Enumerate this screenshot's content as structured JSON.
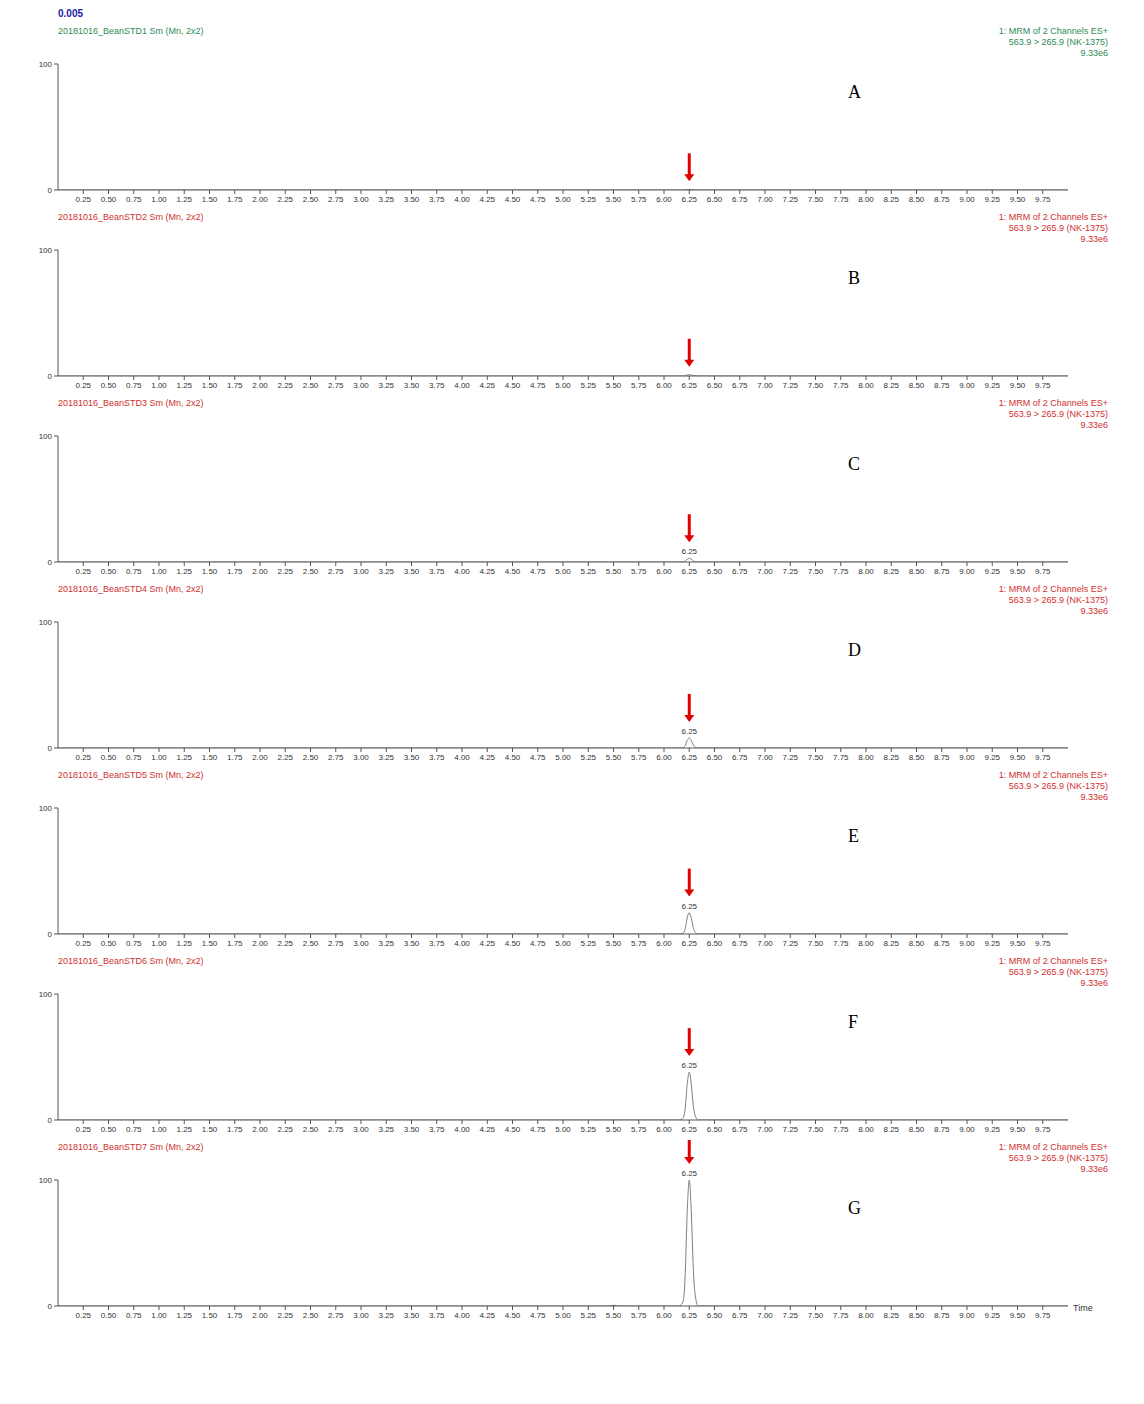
{
  "label": "0.005",
  "chart_data": [
    {
      "type": "line",
      "title": "20181016_BeanSTD1 Sm (Mn, 2x2)",
      "subtitle": [
        "1: MRM of 2 Channels ES+",
        "563.9 > 265.9 (NK-1375)",
        "9.33e6"
      ],
      "annotations": [
        {
          "text": "A"
        }
      ],
      "arrows": [
        6.25
      ],
      "color": "#808080",
      "x": [
        0,
        5.45,
        5.5,
        5.55,
        6.15,
        6.19,
        6.21,
        6.23,
        6.25,
        6.27,
        6.29,
        6.31,
        6.34,
        10
      ],
      "values": [
        0,
        0,
        0,
        0,
        0,
        0,
        0.1,
        0.4,
        0.5,
        0.4,
        0.2,
        0,
        0,
        0
      ],
      "xlim": [
        0,
        10
      ],
      "ylim": [
        0,
        100
      ],
      "yticks": [
        0,
        100
      ],
      "xticks": [
        0.25,
        {
          "value": 0.5,
          "label": "0.50"
        },
        0.75,
        {
          "value": 1,
          "label": "1.00"
        },
        1.25,
        {
          "value": 1.5,
          "label": "1.50"
        },
        1.75,
        {
          "value": 2,
          "label": "2.00"
        },
        2.25,
        {
          "value": 2.5,
          "label": "2.50"
        },
        2.75,
        {
          "value": 3,
          "label": "3.00"
        },
        3.25,
        {
          "value": 3.5,
          "label": "3.50"
        },
        3.75,
        {
          "value": 4,
          "label": "4.00"
        },
        4.25,
        {
          "value": 4.5,
          "label": "4.50"
        },
        4.75,
        {
          "value": 5,
          "label": "5.00"
        },
        5.25,
        {
          "value": 5.5,
          "label": "5.50"
        },
        5.75,
        {
          "value": 6,
          "label": "6.00"
        },
        6.25,
        {
          "value": 6.5,
          "label": "6.50"
        },
        6.75,
        {
          "value": 7,
          "label": "7.00"
        },
        7.25,
        {
          "value": 7.5,
          "label": "7.50"
        },
        7.75,
        {
          "value": 8,
          "label": "8.00"
        },
        8.25,
        {
          "value": 8.5,
          "label": "8.50"
        },
        8.75,
        {
          "value": 9,
          "label": "9.00"
        },
        9.25,
        {
          "value": 9.5,
          "label": "9.50"
        },
        9.75
      ]
    },
    {
      "type": "line",
      "title": "20181016_BeanSTD2 Sm (Mn, 2x2)",
      "subtitle": [
        "1: MRM of 2 Channels ES+",
        "563.9 > 265.9 (NK-1375)",
        "9.33e6"
      ],
      "annotations": [
        {
          "text": "B"
        }
      ],
      "arrows": [
        6.25
      ],
      "color": "#808080",
      "x": [
        0,
        5.45,
        5.5,
        5.55,
        6.15,
        6.19,
        6.21,
        6.23,
        6.25,
        6.27,
        6.29,
        6.31,
        6.34,
        10
      ],
      "values": [
        0,
        0,
        0,
        0,
        0,
        0,
        0.3,
        0.8,
        1,
        0.8,
        0.3,
        0.1,
        0,
        0
      ],
      "xlim": [
        0,
        10
      ],
      "ylim": [
        0,
        100
      ],
      "yticks": [
        0,
        100
      ],
      "xticks": [
        0.25,
        {
          "value": 0.5,
          "label": "0.50"
        },
        0.75,
        {
          "value": 1,
          "label": "1.00"
        },
        1.25,
        {
          "value": 1.5,
          "label": "1.50"
        },
        1.75,
        {
          "value": 2,
          "label": "2.00"
        },
        2.25,
        {
          "value": 2.5,
          "label": "2.50"
        },
        2.75,
        {
          "value": 3,
          "label": "3.00"
        },
        3.25,
        {
          "value": 3.5,
          "label": "3.50"
        },
        3.75,
        {
          "value": 4,
          "label": "4.00"
        },
        4.25,
        {
          "value": 4.5,
          "label": "4.50"
        },
        4.75,
        {
          "value": 5,
          "label": "5.00"
        },
        5.25,
        {
          "value": 5.5,
          "label": "5.50"
        },
        5.75,
        {
          "value": 6,
          "label": "6.00"
        },
        6.25,
        {
          "value": 6.5,
          "label": "6.50"
        },
        6.75,
        {
          "value": 7,
          "label": "7.00"
        },
        7.25,
        {
          "value": 7.5,
          "label": "7.50"
        },
        7.75,
        {
          "value": 8,
          "label": "8.00"
        },
        8.25,
        {
          "value": 8.5,
          "label": "8.50"
        },
        8.75,
        {
          "value": 9,
          "label": "9.00"
        },
        9.25,
        {
          "value": 9.5,
          "label": "9.50"
        },
        9.75
      ]
    },
    {
      "type": "line",
      "title": "20181016_BeanSTD3 Sm (Mn, 2x2)",
      "subtitle": [
        "1: MRM of 2 Channels ES+",
        "563.9 > 265.9 (NK-1375)",
        "9.33e6"
      ],
      "annotations": [
        {
          "text": "C"
        },
        {
          "text": "6.25",
          "x": 6.25
        }
      ],
      "arrows": [
        6.25
      ],
      "color": "#808080",
      "x": [
        0,
        5.45,
        5.5,
        5.55,
        6.15,
        6.19,
        6.21,
        6.23,
        6.25,
        6.27,
        6.29,
        6.31,
        6.34,
        10
      ],
      "values": [
        0,
        0,
        0,
        0,
        0,
        0.1,
        0.8,
        2.2,
        3,
        2.2,
        0.9,
        0.2,
        0,
        0
      ],
      "xlim": [
        0,
        10
      ],
      "ylim": [
        0,
        100
      ],
      "yticks": [
        0,
        100
      ],
      "xticks": [
        0.25,
        {
          "value": 0.5,
          "label": "0.50"
        },
        0.75,
        {
          "value": 1,
          "label": "1.00"
        },
        1.25,
        {
          "value": 1.5,
          "label": "1.50"
        },
        1.75,
        {
          "value": 2,
          "label": "2.00"
        },
        2.25,
        {
          "value": 2.5,
          "label": "2.50"
        },
        2.75,
        {
          "value": 3,
          "label": "3.00"
        },
        3.25,
        {
          "value": 3.5,
          "label": "3.50"
        },
        3.75,
        {
          "value": 4,
          "label": "4.00"
        },
        4.25,
        {
          "value": 4.5,
          "label": "4.50"
        },
        4.75,
        {
          "value": 5,
          "label": "5.00"
        },
        5.25,
        {
          "value": 5.5,
          "label": "5.50"
        },
        5.75,
        {
          "value": 6,
          "label": "6.00"
        },
        6.25,
        {
          "value": 6.5,
          "label": "6.50"
        },
        6.75,
        {
          "value": 7,
          "label": "7.00"
        },
        7.25,
        {
          "value": 7.5,
          "label": "7.50"
        },
        7.75,
        {
          "value": 8,
          "label": "8.00"
        },
        8.25,
        {
          "value": 8.5,
          "label": "8.50"
        },
        8.75,
        {
          "value": 9,
          "label": "9.00"
        },
        9.25,
        {
          "value": 9.5,
          "label": "9.50"
        },
        9.75
      ]
    },
    {
      "type": "line",
      "title": "20181016_BeanSTD4 Sm (Mn, 2x2)",
      "subtitle": [
        "1: MRM of 2 Channels ES+",
        "563.9 > 265.9 (NK-1375)",
        "9.33e6"
      ],
      "annotations": [
        {
          "text": "D"
        },
        {
          "text": "6.25",
          "x": 6.25
        }
      ],
      "arrows": [
        6.25
      ],
      "color": "#808080",
      "x": [
        0,
        5.45,
        5.5,
        5.55,
        6.15,
        6.19,
        6.21,
        6.23,
        6.25,
        6.27,
        6.29,
        6.31,
        6.34,
        10
      ],
      "values": [
        0,
        0,
        0,
        0,
        0,
        0.3,
        2,
        6,
        8,
        6,
        2.4,
        0.6,
        0,
        0
      ],
      "xlim": [
        0,
        10
      ],
      "ylim": [
        0,
        100
      ],
      "yticks": [
        0,
        100
      ],
      "xticks": [
        0.25,
        {
          "value": 0.5,
          "label": "0.50"
        },
        0.75,
        {
          "value": 1,
          "label": "1.00"
        },
        1.25,
        {
          "value": 1.5,
          "label": "1.50"
        },
        1.75,
        {
          "value": 2,
          "label": "2.00"
        },
        2.25,
        {
          "value": 2.5,
          "label": "2.50"
        },
        2.75,
        {
          "value": 3,
          "label": "3.00"
        },
        3.25,
        {
          "value": 3.5,
          "label": "3.50"
        },
        3.75,
        {
          "value": 4,
          "label": "4.00"
        },
        4.25,
        {
          "value": 4.5,
          "label": "4.50"
        },
        4.75,
        {
          "value": 5,
          "label": "5.00"
        },
        5.25,
        {
          "value": 5.5,
          "label": "5.50"
        },
        5.75,
        {
          "value": 6,
          "label": "6.00"
        },
        6.25,
        {
          "value": 6.5,
          "label": "6.50"
        },
        6.75,
        {
          "value": 7,
          "label": "7.00"
        },
        7.25,
        {
          "value": 7.5,
          "label": "7.50"
        },
        7.75,
        {
          "value": 8,
          "label": "8.00"
        },
        8.25,
        {
          "value": 8.5,
          "label": "8.50"
        },
        8.75,
        {
          "value": 9,
          "label": "9.00"
        },
        9.25,
        {
          "value": 9.5,
          "label": "9.50"
        },
        9.75
      ]
    },
    {
      "type": "line",
      "title": "20181016_BeanSTD5 Sm (Mn, 2x2)",
      "subtitle": [
        "1: MRM of 2 Channels ES+",
        "563.9 > 265.9 (NK-1375)",
        "9.33e6"
      ],
      "annotations": [
        {
          "text": "E"
        },
        {
          "text": "6.25",
          "x": 6.25
        }
      ],
      "arrows": [
        6.25
      ],
      "color": "#808080",
      "x": [
        0,
        5.45,
        5.5,
        5.55,
        6.15,
        6.19,
        6.21,
        6.23,
        6.25,
        6.27,
        6.29,
        6.31,
        6.34,
        10
      ],
      "values": [
        0,
        0,
        0,
        0,
        0,
        0.7,
        4.3,
        12.8,
        17,
        12.8,
        5.1,
        1.4,
        0,
        0
      ],
      "xlim": [
        0,
        10
      ],
      "ylim": [
        0,
        100
      ],
      "yticks": [
        0,
        100
      ],
      "xticks": [
        0.25,
        {
          "value": 0.5,
          "label": "0.50"
        },
        0.75,
        {
          "value": 1,
          "label": "1.00"
        },
        1.25,
        {
          "value": 1.5,
          "label": "1.50"
        },
        1.75,
        {
          "value": 2,
          "label": "2.00"
        },
        2.25,
        {
          "value": 2.5,
          "label": "2.50"
        },
        2.75,
        {
          "value": 3,
          "label": "3.00"
        },
        3.25,
        {
          "value": 3.5,
          "label": "3.50"
        },
        3.75,
        {
          "value": 4,
          "label": "4.00"
        },
        4.25,
        {
          "value": 4.5,
          "label": "4.50"
        },
        4.75,
        {
          "value": 5,
          "label": "5.00"
        },
        5.25,
        {
          "value": 5.5,
          "label": "5.50"
        },
        5.75,
        {
          "value": 6,
          "label": "6.00"
        },
        6.25,
        {
          "value": 6.5,
          "label": "6.50"
        },
        6.75,
        {
          "value": 7,
          "label": "7.00"
        },
        7.25,
        {
          "value": 7.5,
          "label": "7.50"
        },
        7.75,
        {
          "value": 8,
          "label": "8.00"
        },
        8.25,
        {
          "value": 8.5,
          "label": "8.50"
        },
        8.75,
        {
          "value": 9,
          "label": "9.00"
        },
        9.25,
        {
          "value": 9.5,
          "label": "9.50"
        },
        9.75
      ]
    },
    {
      "type": "line",
      "title": "20181016_BeanSTD6 Sm (Mn, 2x2)",
      "subtitle": [
        "1: MRM of 2 Channels ES+",
        "563.9 > 265.9 (NK-1375)",
        "9.33e6"
      ],
      "annotations": [
        {
          "text": "F"
        },
        {
          "text": "6.25",
          "x": 6.25
        }
      ],
      "arrows": [
        6.25
      ],
      "color": "#808080",
      "x": [
        0,
        5.45,
        5.5,
        5.55,
        6.15,
        6.19,
        6.21,
        6.23,
        6.25,
        6.27,
        6.29,
        6.31,
        6.34,
        10
      ],
      "values": [
        0,
        0,
        0,
        0,
        0,
        1.5,
        9.5,
        28.5,
        38,
        28.5,
        11.4,
        3,
        0,
        0
      ],
      "xlim": [
        0,
        10
      ],
      "ylim": [
        0,
        100
      ],
      "yticks": [
        0,
        100
      ],
      "xticks": [
        0.25,
        {
          "value": 0.5,
          "label": "0.50"
        },
        0.75,
        {
          "value": 1,
          "label": "1.00"
        },
        1.25,
        {
          "value": 1.5,
          "label": "1.50"
        },
        1.75,
        {
          "value": 2,
          "label": "2.00"
        },
        2.25,
        {
          "value": 2.5,
          "label": "2.50"
        },
        2.75,
        {
          "value": 3,
          "label": "3.00"
        },
        3.25,
        {
          "value": 3.5,
          "label": "3.50"
        },
        3.75,
        {
          "value": 4,
          "label": "4.00"
        },
        4.25,
        {
          "value": 4.5,
          "label": "4.50"
        },
        4.75,
        {
          "value": 5,
          "label": "5.00"
        },
        5.25,
        {
          "value": 5.5,
          "label": "5.50"
        },
        5.75,
        {
          "value": 6,
          "label": "6.00"
        },
        6.25,
        {
          "value": 6.5,
          "label": "6.50"
        },
        6.75,
        {
          "value": 7,
          "label": "7.00"
        },
        7.25,
        {
          "value": 7.5,
          "label": "7.50"
        },
        7.75,
        {
          "value": 8,
          "label": "8.00"
        },
        8.25,
        {
          "value": 8.5,
          "label": "8.50"
        },
        8.75,
        {
          "value": 9,
          "label": "9.00"
        },
        9.25,
        {
          "value": 9.5,
          "label": "9.50"
        },
        9.75
      ]
    },
    {
      "type": "line",
      "title": "20181016_BeanSTD7 Sm (Mn, 2x2)",
      "subtitle": [
        "1: MRM of 2 Channels ES+",
        "563.9 > 265.9 (NK-1375)",
        "9.33e6"
      ],
      "annotations": [
        {
          "text": "G"
        },
        {
          "text": "6.25",
          "x": 6.25
        }
      ],
      "arrows": [
        6.25
      ],
      "color": "#808080",
      "xlabel": "Time",
      "x": [
        0,
        5.45,
        5.5,
        5.55,
        6.15,
        6.19,
        6.21,
        6.23,
        6.25,
        6.27,
        6.29,
        6.31,
        6.34,
        10
      ],
      "values": [
        0,
        0,
        0.6,
        0,
        0,
        4,
        25,
        75,
        100,
        75,
        30,
        8,
        0,
        0
      ],
      "xlim": [
        0,
        10
      ],
      "ylim": [
        0,
        100
      ],
      "yticks": [
        0,
        100
      ],
      "xticks": [
        0.25,
        {
          "value": 0.5,
          "label": "0.50"
        },
        0.75,
        {
          "value": 1,
          "label": "1.00"
        },
        1.25,
        {
          "value": 1.5,
          "label": "1.50"
        },
        1.75,
        {
          "value": 2,
          "label": "2.00"
        },
        2.25,
        {
          "value": 2.5,
          "label": "2.50"
        },
        2.75,
        {
          "value": 3,
          "label": "3.00"
        },
        3.25,
        {
          "value": 3.5,
          "label": "3.50"
        },
        3.75,
        {
          "value": 4,
          "label": "4.00"
        },
        4.25,
        {
          "value": 4.5,
          "label": "4.50"
        },
        4.75,
        {
          "value": 5,
          "label": "5.00"
        },
        5.25,
        {
          "value": 5.5,
          "label": "5.50"
        },
        5.75,
        {
          "value": 6,
          "label": "6.00"
        },
        6.25,
        {
          "value": 6.5,
          "label": "6.50"
        },
        6.75,
        {
          "value": 7,
          "label": "7.00"
        },
        7.25,
        {
          "value": 7.5,
          "label": "7.50"
        },
        7.75,
        {
          "value": 8,
          "label": "8.00"
        },
        8.25,
        {
          "value": 8.5,
          "label": "8.50"
        },
        8.75,
        {
          "value": 9,
          "label": "9.00"
        },
        9.25,
        {
          "value": 9.5,
          "label": "9.50"
        },
        9.75
      ]
    }
  ]
}
